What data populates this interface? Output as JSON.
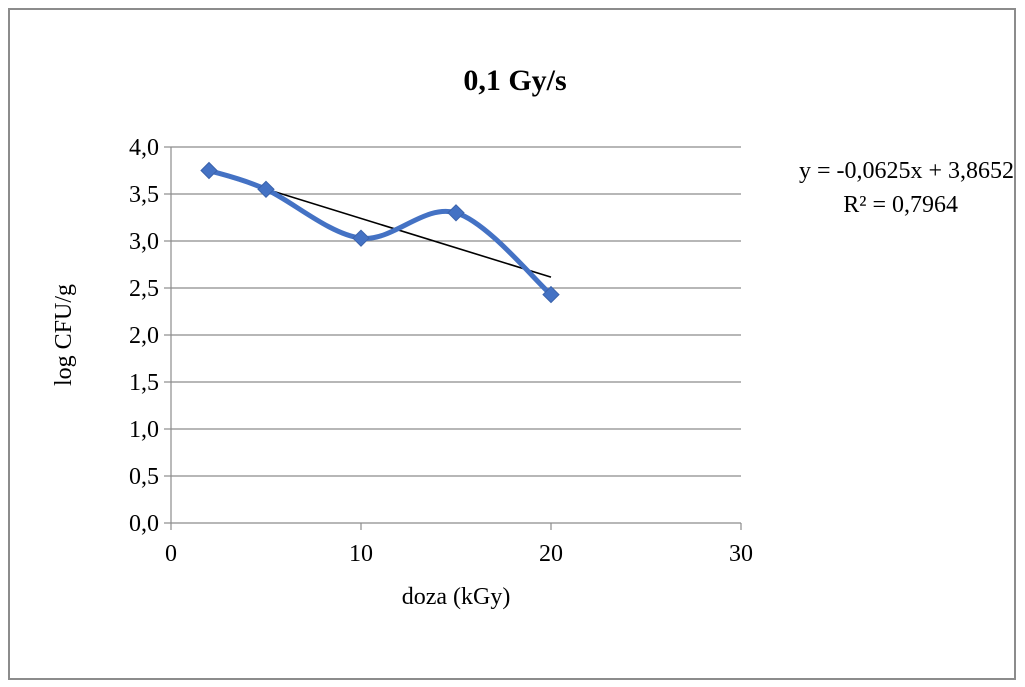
{
  "chart_data": {
    "type": "line",
    "title": "0,1 Gy/s",
    "xlabel": "doza (kGy)",
    "ylabel": "log CFU/g",
    "xlim": [
      0,
      30
    ],
    "ylim": [
      0,
      4.0
    ],
    "x_ticks": [
      0,
      10,
      20,
      30
    ],
    "x_tick_labels": [
      "0",
      "10",
      "20",
      "30"
    ],
    "y_ticks": [
      0,
      0.5,
      1.0,
      1.5,
      2.0,
      2.5,
      3.0,
      3.5,
      4.0
    ],
    "y_tick_labels": [
      "0,0",
      "0,5",
      "1,0",
      "1,5",
      "2,0",
      "2,5",
      "3,0",
      "3,5",
      "4,0"
    ],
    "grid": true,
    "series": [
      {
        "x": [
          2,
          5,
          10,
          15,
          20
        ],
        "values": [
          3.75,
          3.55,
          3.03,
          3.3,
          2.43
        ],
        "color": "#4472C4",
        "marker": "diamond",
        "smooth": true
      }
    ],
    "trendline": {
      "type": "linear",
      "slope": -0.0625,
      "intercept": 3.8652,
      "x_range": [
        2,
        20
      ],
      "color": "#000000",
      "equation": "y = -0,0625x + 3,8652",
      "r_squared": "R² = 0,7964"
    }
  }
}
